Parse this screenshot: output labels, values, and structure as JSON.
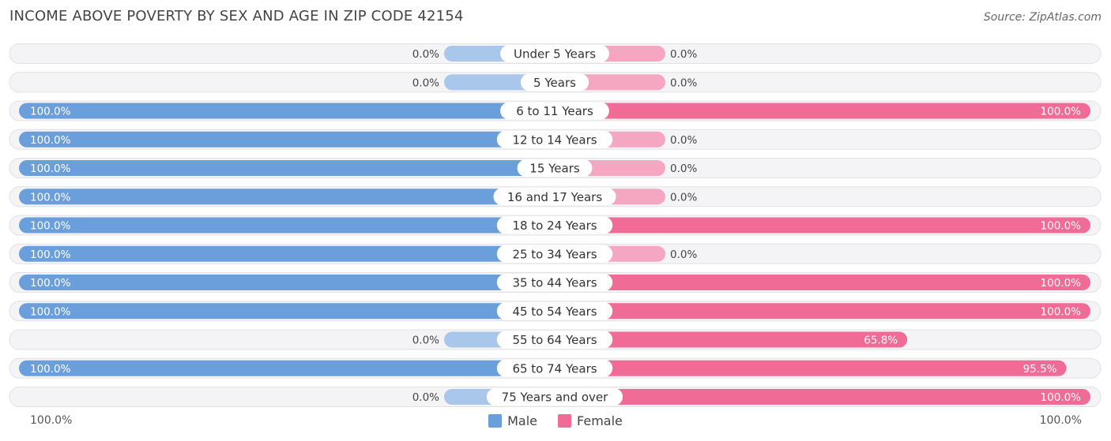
{
  "header": {
    "title": "INCOME ABOVE POVERTY BY SEX AND AGE IN ZIP CODE 42154",
    "source": "Source: ZipAtlas.com"
  },
  "colors": {
    "male_full": "#6a9fdb",
    "male_light": "#a9c7ea",
    "female_full": "#f06b96",
    "female_light": "#f5a7c2",
    "track": "#f1f1f3"
  },
  "chart_data": {
    "type": "bar",
    "orientation": "horizontal-diverging",
    "categories": [
      "Under 5 Years",
      "5 Years",
      "6 to 11 Years",
      "12 to 14 Years",
      "15 Years",
      "16 and 17 Years",
      "18 to 24 Years",
      "25 to 34 Years",
      "35 to 44 Years",
      "45 to 54 Years",
      "55 to 64 Years",
      "65 to 74 Years",
      "75 Years and over"
    ],
    "series": [
      {
        "name": "Male",
        "values": [
          0.0,
          0.0,
          100.0,
          100.0,
          100.0,
          100.0,
          100.0,
          100.0,
          100.0,
          100.0,
          0.0,
          100.0,
          0.0
        ],
        "labels": [
          "0.0%",
          "0.0%",
          "100.0%",
          "100.0%",
          "100.0%",
          "100.0%",
          "100.0%",
          "100.0%",
          "100.0%",
          "100.0%",
          "0.0%",
          "100.0%",
          "0.0%"
        ]
      },
      {
        "name": "Female",
        "values": [
          0.0,
          0.0,
          100.0,
          0.0,
          0.0,
          0.0,
          100.0,
          0.0,
          100.0,
          100.0,
          65.8,
          95.5,
          100.0
        ],
        "labels": [
          "0.0%",
          "0.0%",
          "100.0%",
          "0.0%",
          "0.0%",
          "0.0%",
          "100.0%",
          "0.0%",
          "100.0%",
          "100.0%",
          "65.8%",
          "95.5%",
          "100.0%"
        ]
      }
    ],
    "xlim": [
      0,
      100
    ],
    "axis_labels": {
      "left": "100.0%",
      "right": "100.0%"
    },
    "legend": [
      "Male",
      "Female"
    ],
    "legend_position": "bottom-center"
  }
}
